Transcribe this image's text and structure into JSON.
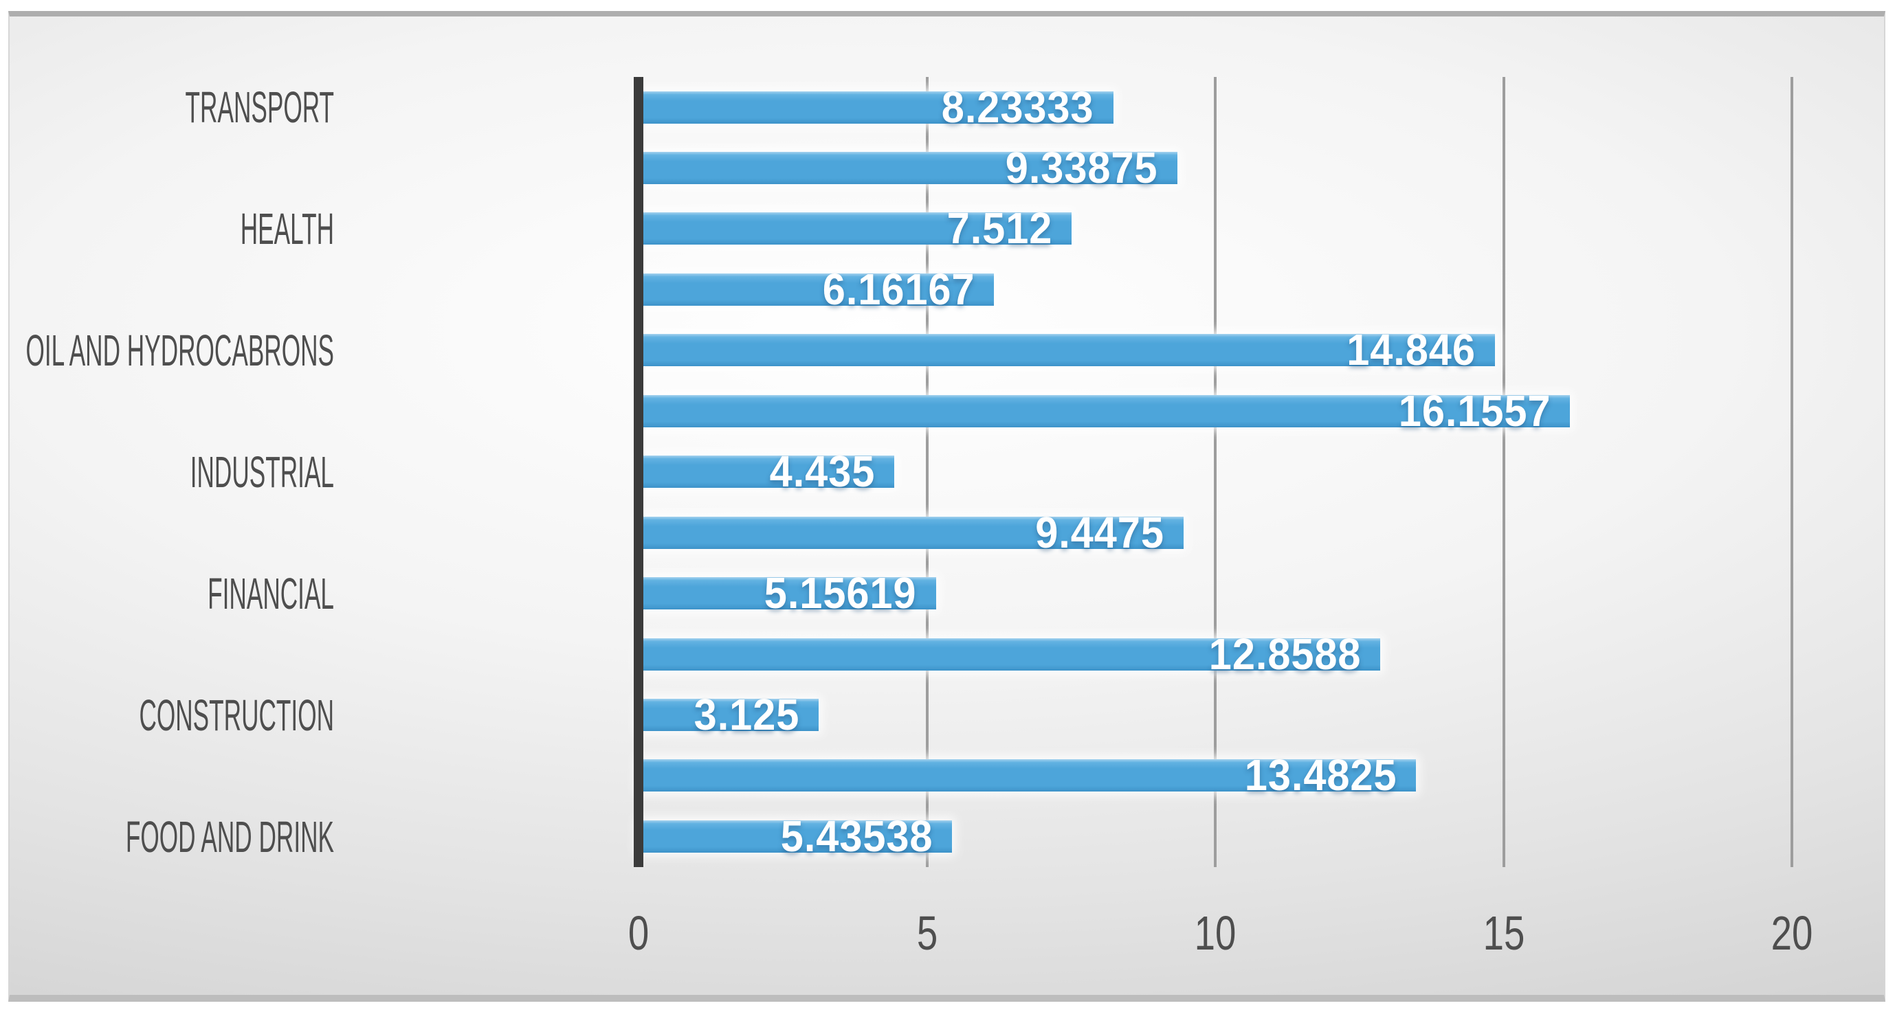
{
  "chart_data": {
    "type": "bar",
    "orientation": "horizontal",
    "title": "",
    "xlabel": "",
    "ylabel": "",
    "xlim": [
      0,
      20
    ],
    "x_tick_labels": [
      "0",
      "5",
      "10",
      "15",
      "20"
    ],
    "x_tick_values": [
      0,
      5,
      10,
      15,
      20
    ],
    "grid": true,
    "legend": false,
    "categories": [
      "TRANSPORT",
      "",
      "HEALTH",
      "",
      "OIL AND HYDROCABRONS",
      "",
      "INDUSTRIAL",
      "",
      "FINANCIAL",
      "",
      "CONSTRUCTION",
      "",
      "FOOD AND DRINK"
    ],
    "values": [
      8.23333,
      9.33875,
      7.512,
      6.16167,
      14.846,
      16.1557,
      4.435,
      9.4475,
      5.15619,
      12.8588,
      3.125,
      13.4825,
      5.43538
    ],
    "data_labels": [
      "8.23333",
      "9.33875",
      "7.512",
      "6.16167",
      "14.846",
      "16.1557",
      "4.435",
      "9.4475",
      "5.15619",
      "12.8588",
      "3.125",
      "13.4825",
      "5.43538"
    ],
    "colors": {
      "bar": "#4da5da",
      "axis_line": "#3b3b3b",
      "gridline": "#9d9d9d",
      "category_label_text": "#4e4e4e",
      "tick_label_text": "#4e4e4e",
      "data_label_text": "#ffffff"
    }
  }
}
